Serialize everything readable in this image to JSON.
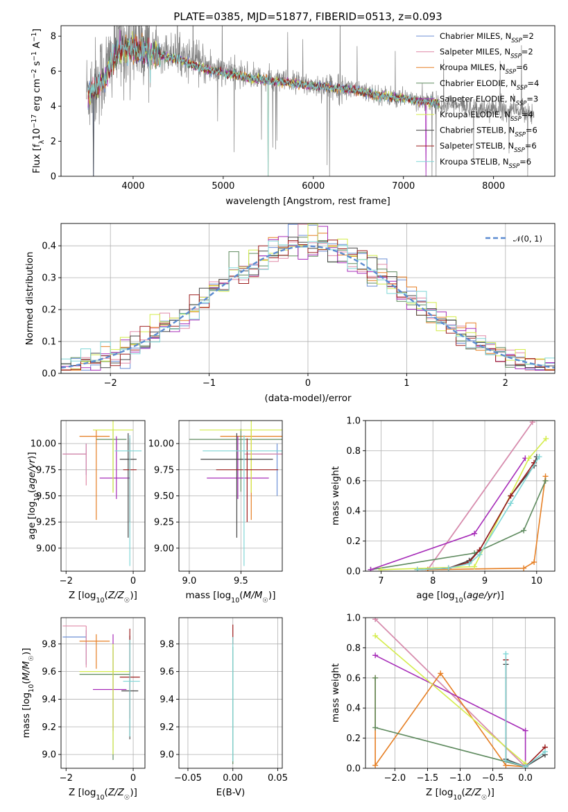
{
  "title": "PLATE=0385, MJD=51877, FIBERID=0513, z=0.093",
  "colors": {
    "Chabrier MILES": "#6b8fd6",
    "Salpeter MILES": "#e08aa8",
    "Kroupa MILES": "#e67e22",
    "Chabrier ELODIE": "#5e8a5e",
    "Salpeter ELODIE": "#a62bb8",
    "Kroupa ELODIE": "#d4ec4a",
    "Chabrier STELIB": "#454545",
    "Salpeter STELIB": "#9b1b1b",
    "Kroupa STELIB": "#7fd6d6"
  },
  "legend": {
    "items": [
      {
        "model": "Chabrier MILES",
        "label": "Chabrier MILES, N",
        "sub": "SSP",
        "tail": "=2"
      },
      {
        "model": "Salpeter MILES",
        "label": "Salpeter MILES, N",
        "sub": "SSP",
        "tail": "=2"
      },
      {
        "model": "Kroupa MILES",
        "label": "Kroupa MILES, N",
        "sub": "SSP",
        "tail": "=6"
      },
      {
        "model": "Chabrier ELODIE",
        "label": "Chabrier ELODIE, N",
        "sub": "SSP",
        "tail": "=4"
      },
      {
        "model": "Salpeter ELODIE",
        "label": "Salpeter ELODIE, N",
        "sub": "SSP",
        "tail": "=3"
      },
      {
        "model": "Kroupa ELODIE",
        "label": "Kroupa ELODIE, N",
        "sub": "SSP",
        "tail": "=4"
      },
      {
        "model": "Chabrier STELIB",
        "label": "Chabrier STELIB, N",
        "sub": "SSP",
        "tail": "=6"
      },
      {
        "model": "Salpeter STELIB",
        "label": "Salpeter STELIB, N",
        "sub": "SSP",
        "tail": "=6"
      },
      {
        "model": "Kroupa STELIB",
        "label": "Kroupa STELIB, N",
        "sub": "SSP",
        "tail": "=6"
      }
    ],
    "normal_label": "𝒩(0, 1)"
  },
  "chart_data": [
    {
      "id": "spectrum",
      "type": "line",
      "xlabel": "wavelength [Angstrom, rest frame]",
      "ylabel_parts": [
        "Flux [f",
        "λ",
        "10",
        "−17",
        " erg cm",
        "−2",
        " s",
        "−1",
        " A",
        "−1",
        "]"
      ],
      "xlim": [
        3200,
        8680
      ],
      "ylim": [
        0,
        8.6
      ],
      "xticks": [
        4000,
        5000,
        6000,
        7000,
        8000
      ],
      "yticks": [
        0,
        2,
        4,
        6,
        8
      ],
      "data_envelope": {
        "x": [
          3480,
          3600,
          3700,
          3800,
          3900,
          4000,
          4200,
          4500,
          4800,
          5000,
          5300,
          5600,
          6000,
          6400,
          6800,
          7000,
          7200,
          7400,
          7700,
          8000,
          8300,
          8450
        ],
        "y": [
          4.8,
          5.4,
          6.0,
          7.2,
          7.5,
          7.7,
          7.3,
          7.0,
          6.3,
          6.0,
          5.7,
          5.45,
          5.2,
          5.0,
          4.6,
          4.5,
          4.35,
          4.15,
          3.95,
          3.85,
          3.75,
          3.65
        ]
      },
      "model_spectrum": {
        "x": [
          3500,
          3600,
          3700,
          3800,
          3900,
          4000,
          4200,
          4500,
          4800,
          5000,
          5300,
          5600,
          6000,
          6400,
          6800,
          7000,
          7200,
          7400
        ],
        "y": [
          4.7,
          5.1,
          5.7,
          6.9,
          7.2,
          7.3,
          7.0,
          6.7,
          6.1,
          5.9,
          5.6,
          5.4,
          5.15,
          4.95,
          4.55,
          4.45,
          4.3,
          4.15
        ]
      }
    },
    {
      "id": "residuals",
      "type": "step",
      "xlabel": "(data-model)/error",
      "ylabel": "Normed distribution",
      "xlim": [
        -2.5,
        2.5
      ],
      "ylim": [
        0,
        0.47
      ],
      "xticks": [
        -2,
        -1,
        0,
        1,
        2
      ],
      "yticks": [
        0.0,
        0.1,
        0.2,
        0.3,
        0.4
      ],
      "bin_edges_range": [
        -2.5,
        2.5
      ],
      "n_bins": 50,
      "reference": {
        "name": "𝒩(0, 1)",
        "mean": 0,
        "sigma": 1
      }
    },
    {
      "id": "age_vs_Z",
      "type": "errorbar",
      "xlabel": "Z [log10(Z/Z☉)]",
      "ylabel": "age  [log10(age/yr)]",
      "xlim": [
        -2.15,
        0.35
      ],
      "ylim": [
        8.78,
        10.22
      ],
      "xticks": [
        -2,
        0
      ],
      "yticks": [
        9.0,
        9.25,
        9.5,
        9.75,
        10.0
      ],
      "points": [
        {
          "model": "Chabrier MILES",
          "x": -1.4,
          "xerr": [
            0.7,
            0.0
          ],
          "y": 9.9,
          "yerr": [
            0.2,
            0.1
          ]
        },
        {
          "model": "Salpeter MILES",
          "x": -1.4,
          "xerr": [
            0.7,
            0.0
          ],
          "y": 9.9,
          "yerr": [
            0.3,
            0.1
          ]
        },
        {
          "model": "Kroupa MILES",
          "x": -1.1,
          "xerr": [
            0.5,
            0.4
          ],
          "y": 10.07,
          "yerr": [
            0.8,
            0.06
          ]
        },
        {
          "model": "Chabrier ELODIE",
          "x": -0.6,
          "xerr": [
            0.5,
            0.4
          ],
          "y": 10.04,
          "yerr": [
            0.5,
            0.1
          ]
        },
        {
          "model": "Salpeter ELODIE",
          "x": -0.5,
          "xerr": [
            0.5,
            0.4
          ],
          "y": 9.67,
          "yerr": [
            0.2,
            0.4
          ]
        },
        {
          "model": "Kroupa ELODIE",
          "x": -0.6,
          "xerr": [
            0.6,
            0.6
          ],
          "y": 10.13,
          "yerr": [
            0.6,
            0.1
          ]
        },
        {
          "model": "Chabrier STELIB",
          "x": -0.15,
          "xerr": [
            0.25,
            0.25
          ],
          "y": 9.85,
          "yerr": [
            0.75,
            0.25
          ]
        },
        {
          "model": "Salpeter STELIB",
          "x": -0.1,
          "xerr": [
            0.2,
            0.2
          ],
          "y": 9.75,
          "yerr": [
            0.5,
            0.3
          ]
        },
        {
          "model": "Kroupa STELIB",
          "x": -0.1,
          "xerr": [
            0.45,
            0.35
          ],
          "y": 9.93,
          "yerr": [
            1.1,
            0.15
          ]
        }
      ]
    },
    {
      "id": "age_vs_mass",
      "type": "errorbar",
      "xlabel": "mass [log10(M/M☉)]",
      "ylabel": "",
      "xlim": [
        8.9,
        9.9
      ],
      "ylim": [
        8.78,
        10.22
      ],
      "xticks": [
        9.0,
        9.5
      ],
      "yticks": [
        9.0,
        9.25,
        9.5,
        9.75,
        10.0
      ],
      "points": [
        {
          "model": "Chabrier MILES",
          "x": 9.85,
          "xerr": [
            0.3,
            0.05
          ],
          "y": 9.9,
          "yerr": [
            0.4,
            0.1
          ]
        },
        {
          "model": "Salpeter MILES",
          "x": 9.93,
          "xerr": [
            0.4,
            0.0
          ],
          "y": 9.9,
          "yerr": [
            0.4,
            0.1
          ]
        },
        {
          "model": "Kroupa MILES",
          "x": 9.6,
          "xerr": [
            0.3,
            0.3
          ],
          "y": 10.07,
          "yerr": [
            0.8,
            0.06
          ]
        },
        {
          "model": "Chabrier ELODIE",
          "x": 9.5,
          "xerr": [
            0.5,
            0.4
          ],
          "y": 10.04,
          "yerr": [
            0.5,
            0.1
          ]
        },
        {
          "model": "Salpeter ELODIE",
          "x": 9.47,
          "xerr": [
            0.3,
            0.3
          ],
          "y": 9.67,
          "yerr": [
            0.2,
            0.4
          ]
        },
        {
          "model": "Kroupa ELODIE",
          "x": 9.6,
          "xerr": [
            0.5,
            0.3
          ],
          "y": 10.13,
          "yerr": [
            0.6,
            0.1
          ]
        },
        {
          "model": "Chabrier STELIB",
          "x": 9.46,
          "xerr": [
            0.35,
            0.35
          ],
          "y": 9.85,
          "yerr": [
            0.75,
            0.25
          ]
        },
        {
          "model": "Salpeter STELIB",
          "x": 9.56,
          "xerr": [
            0.3,
            0.3
          ],
          "y": 9.75,
          "yerr": [
            0.5,
            0.3
          ]
        },
        {
          "model": "Kroupa STELIB",
          "x": 9.53,
          "xerr": [
            0.4,
            0.4
          ],
          "y": 9.93,
          "yerr": [
            1.1,
            0.15
          ]
        }
      ]
    },
    {
      "id": "weight_vs_age",
      "type": "line",
      "xlabel": "age  [log10(age/yr)]",
      "ylabel": "mass weight",
      "xlim": [
        6.7,
        10.35
      ],
      "ylim": [
        0,
        1.0
      ],
      "xticks": [
        7,
        8,
        9,
        10
      ],
      "yticks": [
        0.0,
        0.2,
        0.4,
        0.6,
        0.8,
        1.0
      ],
      "series": [
        {
          "model": "Chabrier MILES",
          "x": [
            7.9,
            9.92
          ],
          "y": [
            0.01,
            0.99
          ]
        },
        {
          "model": "Salpeter MILES",
          "x": [
            7.9,
            9.92
          ],
          "y": [
            0.01,
            0.99
          ]
        },
        {
          "model": "Kroupa MILES",
          "x": [
            7.9,
            9.75,
            9.95,
            10.17,
            10.17
          ],
          "y": [
            0.01,
            0.02,
            0.06,
            0.63,
            0.6
          ]
        },
        {
          "model": "Chabrier ELODIE",
          "x": [
            6.8,
            8.8,
            9.75,
            10.17
          ],
          "y": [
            0.01,
            0.12,
            0.27,
            0.6
          ]
        },
        {
          "model": "Salpeter ELODIE",
          "x": [
            6.8,
            8.8,
            9.78
          ],
          "y": [
            0.01,
            0.25,
            0.75
          ]
        },
        {
          "model": "Kroupa ELODIE",
          "x": [
            7.0,
            8.8,
            9.85,
            10.18
          ],
          "y": [
            0.01,
            0.03,
            0.75,
            0.88
          ]
        },
        {
          "model": "Chabrier STELIB",
          "x": [
            7.7,
            8.3,
            8.7,
            8.9,
            9.5,
            9.95,
            10.0
          ],
          "y": [
            0.01,
            0.02,
            0.07,
            0.14,
            0.5,
            0.7,
            0.76
          ]
        },
        {
          "model": "Salpeter STELIB",
          "x": [
            7.7,
            8.3,
            8.7,
            8.9,
            9.5,
            9.95
          ],
          "y": [
            0.01,
            0.02,
            0.06,
            0.14,
            0.5,
            0.72
          ]
        },
        {
          "model": "Kroupa STELIB",
          "x": [
            7.7,
            8.3,
            8.7,
            8.9,
            9.5,
            10.05
          ],
          "y": [
            0.01,
            0.02,
            0.05,
            0.11,
            0.45,
            0.76
          ]
        }
      ]
    },
    {
      "id": "mass_vs_Z",
      "type": "errorbar",
      "xlabel": "Z [log10(Z/Z☉)]",
      "ylabel": "mass [log10(M/M☉)]",
      "xlim": [
        -2.15,
        0.35
      ],
      "ylim": [
        8.9,
        9.99
      ],
      "xticks": [
        -2,
        0
      ],
      "yticks": [
        9.0,
        9.2,
        9.4,
        9.6,
        9.8
      ],
      "points": [
        {
          "model": "Chabrier MILES",
          "x": -1.4,
          "xerr": [
            0.7,
            0.0
          ],
          "y": 9.85,
          "yerr": [
            0.2,
            0.05
          ]
        },
        {
          "model": "Salpeter MILES",
          "x": -1.4,
          "xerr": [
            0.7,
            0.0
          ],
          "y": 9.93,
          "yerr": [
            0.3,
            0.0
          ]
        },
        {
          "model": "Kroupa MILES",
          "x": -1.1,
          "xerr": [
            0.5,
            0.4
          ],
          "y": 9.82,
          "yerr": [
            0.2,
            0.05
          ]
        },
        {
          "model": "Chabrier ELODIE",
          "x": -0.6,
          "xerr": [
            1.0,
            0.5
          ],
          "y": 9.58,
          "yerr": [
            0.62,
            0.2
          ]
        },
        {
          "model": "Salpeter ELODIE",
          "x": -0.6,
          "xerr": [
            0.6,
            0.4
          ],
          "y": 9.47,
          "yerr": [
            0.3,
            0.4
          ]
        },
        {
          "model": "Kroupa ELODIE",
          "x": -0.6,
          "xerr": [
            1.0,
            0.5
          ],
          "y": 9.6,
          "yerr": [
            0.6,
            0.2
          ]
        },
        {
          "model": "Chabrier STELIB",
          "x": -0.1,
          "xerr": [
            0.25,
            0.25
          ],
          "y": 9.46,
          "yerr": [
            0.35,
            0.4
          ]
        },
        {
          "model": "Salpeter STELIB",
          "x": -0.1,
          "xerr": [
            0.3,
            0.3
          ],
          "y": 9.56,
          "yerr": [
            0.3,
            0.35
          ]
        },
        {
          "model": "Kroupa STELIB",
          "x": -0.1,
          "xerr": [
            0.2,
            0.3
          ],
          "y": 9.53,
          "yerr": [
            0.4,
            0.3
          ]
        }
      ]
    },
    {
      "id": "mass_vs_EBV",
      "type": "errorbar",
      "xlabel": "E(B-V)",
      "ylabel": "",
      "xlim": [
        -0.06,
        0.055
      ],
      "ylim": [
        8.9,
        9.99
      ],
      "xticks": [
        -0.05,
        0.0,
        0.05
      ],
      "yticks": [
        9.0,
        9.2,
        9.4,
        9.6,
        9.8
      ],
      "points": [
        {
          "model": "Chabrier ELODIE",
          "x": 0.0,
          "xerr": [
            0.0,
            0.0
          ],
          "y": 9.58,
          "yerr": [
            0.65,
            0.2
          ]
        },
        {
          "model": "Salpeter STELIB",
          "x": 0.0,
          "xerr": [
            0.0,
            0.0
          ],
          "y": 9.85,
          "yerr": [
            0.05,
            0.09
          ]
        },
        {
          "model": "Kroupa STELIB",
          "x": 0.0,
          "xerr": [
            0.0,
            0.0
          ],
          "y": 9.6,
          "yerr": [
            0.65,
            0.25
          ]
        }
      ]
    },
    {
      "id": "weight_vs_Z",
      "type": "line",
      "xlabel": "Z [log10(Z/Z☉)]",
      "ylabel": "mass weight",
      "xlim": [
        -2.45,
        0.45
      ],
      "ylim": [
        0,
        1.0
      ],
      "xticks": [
        -2.0,
        -1.5,
        -1.0,
        -0.5,
        0.0
      ],
      "yticks": [
        0.0,
        0.2,
        0.4,
        0.6,
        0.8,
        1.0
      ],
      "series": [
        {
          "model": "Chabrier MILES",
          "x": [
            -2.3,
            0.0
          ],
          "y": [
            0.99,
            0.01
          ]
        },
        {
          "model": "Salpeter MILES",
          "x": [
            -2.3,
            0.0
          ],
          "y": [
            0.99,
            0.01
          ]
        },
        {
          "model": "Kroupa MILES",
          "x": [
            -2.3,
            -2.3,
            -1.3,
            -0.3,
            0.0
          ],
          "y": [
            0.6,
            0.02,
            0.63,
            0.02,
            0.01
          ]
        },
        {
          "model": "Chabrier ELODIE",
          "x": [
            -2.3,
            -2.3,
            0.0
          ],
          "y": [
            0.6,
            0.27,
            0.01
          ]
        },
        {
          "model": "Salpeter ELODIE",
          "x": [
            -2.3,
            0.0,
            0.0
          ],
          "y": [
            0.75,
            0.25,
            0.01
          ]
        },
        {
          "model": "Kroupa ELODIE",
          "x": [
            -2.3,
            0.0
          ],
          "y": [
            0.88,
            0.03
          ]
        },
        {
          "model": "Chabrier STELIB",
          "x": [
            -0.3,
            -0.3,
            0.0,
            0.3
          ],
          "y": [
            0.69,
            0.06,
            0.01,
            0.09
          ]
        },
        {
          "model": "Salpeter STELIB",
          "x": [
            -0.3,
            -0.3,
            0.0,
            0.3
          ],
          "y": [
            0.72,
            0.05,
            0.01,
            0.14
          ]
        },
        {
          "model": "Kroupa STELIB",
          "x": [
            -0.3,
            -0.3,
            0.0,
            0.3
          ],
          "y": [
            0.76,
            0.05,
            0.01,
            0.11
          ]
        }
      ]
    }
  ]
}
